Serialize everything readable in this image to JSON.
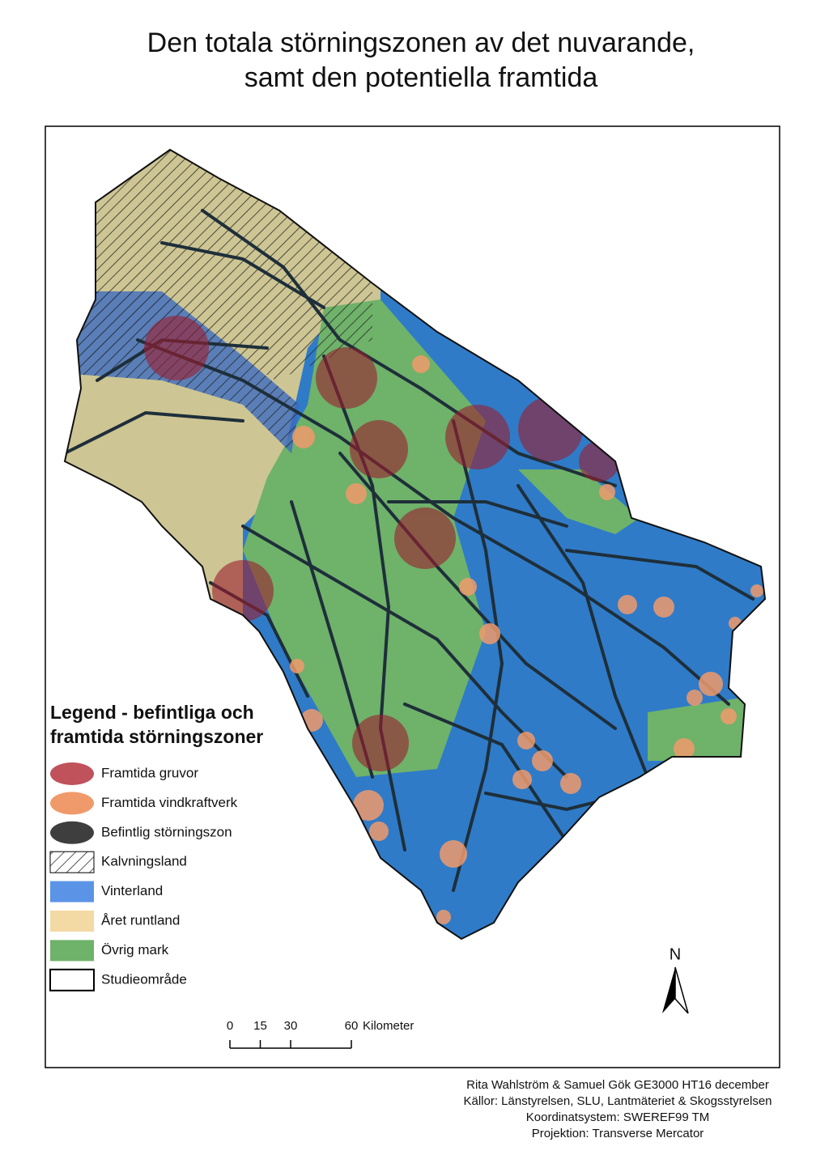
{
  "title_lines": [
    "Den totala störningszonen av det nuvarande,",
    "samt den potentiella framtida"
  ],
  "legend": {
    "title_lines": [
      "Legend - befintliga och",
      "framtida störningszoner"
    ],
    "items": [
      "Framtida gruvor",
      "Framtida vindkraftverk",
      "Befintlig störningszon",
      "Kalvningsland",
      "Vinterland",
      "Året runtland",
      "Övrig mark",
      "Studieområde"
    ]
  },
  "north": "N",
  "scale_bar": {
    "ticks": [
      0,
      15,
      30,
      60
    ],
    "unit": "Kilometer"
  },
  "credits": [
    "Rita Wahlström & Samuel Gök GE3000 HT16 december",
    "Källor: Länstyrelsen, SLU, Lantmäteriet & Skogsstyrelsen",
    "Koordinatsystem: SWEREF99 TM",
    "Projektion: Transverse Mercator"
  ]
}
